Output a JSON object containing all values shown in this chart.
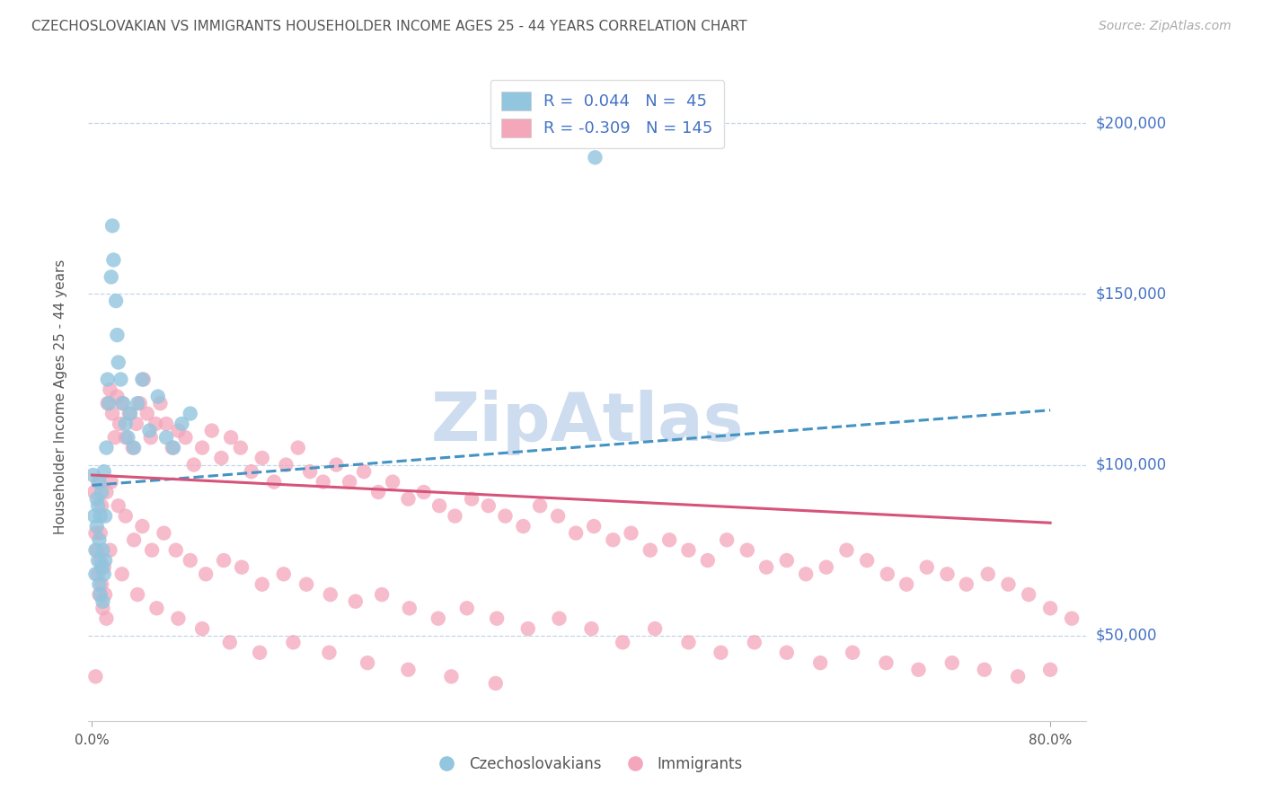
{
  "title": "CZECHOSLOVAKIAN VS IMMIGRANTS HOUSEHOLDER INCOME AGES 25 - 44 YEARS CORRELATION CHART",
  "source": "Source: ZipAtlas.com",
  "ylabel": "Householder Income Ages 25 - 44 years",
  "y_ticks": [
    50000,
    100000,
    150000,
    200000
  ],
  "y_tick_labels": [
    "$50,000",
    "$100,000",
    "$150,000",
    "$200,000"
  ],
  "y_min": 25000,
  "y_max": 215000,
  "x_min": -0.003,
  "x_max": 0.83,
  "legend_blue_r": "0.044",
  "legend_blue_n": "45",
  "legend_pink_r": "-0.309",
  "legend_pink_n": "145",
  "blue_color": "#92c5de",
  "pink_color": "#f4a6bb",
  "blue_line_color": "#4393c3",
  "pink_line_color": "#d6537a",
  "title_color": "#555555",
  "source_color": "#aaaaaa",
  "right_label_color": "#4472c4",
  "watermark_color": "#cddcef",
  "background_color": "#ffffff",
  "blue_scatter_x": [
    0.001,
    0.002,
    0.003,
    0.003,
    0.004,
    0.004,
    0.005,
    0.005,
    0.006,
    0.006,
    0.006,
    0.007,
    0.007,
    0.008,
    0.008,
    0.009,
    0.009,
    0.01,
    0.01,
    0.011,
    0.011,
    0.012,
    0.013,
    0.014,
    0.016,
    0.017,
    0.018,
    0.02,
    0.021,
    0.022,
    0.024,
    0.026,
    0.028,
    0.03,
    0.032,
    0.035,
    0.038,
    0.042,
    0.048,
    0.055,
    0.062,
    0.068,
    0.075,
    0.082,
    0.42
  ],
  "blue_scatter_y": [
    97000,
    85000,
    75000,
    68000,
    82000,
    90000,
    72000,
    88000,
    65000,
    78000,
    95000,
    62000,
    85000,
    70000,
    92000,
    60000,
    75000,
    68000,
    98000,
    72000,
    85000,
    105000,
    125000,
    118000,
    155000,
    170000,
    160000,
    148000,
    138000,
    130000,
    125000,
    118000,
    112000,
    108000,
    115000,
    105000,
    118000,
    125000,
    110000,
    120000,
    108000,
    105000,
    112000,
    115000,
    190000
  ],
  "pink_scatter_x": [
    0.002,
    0.003,
    0.004,
    0.005,
    0.006,
    0.007,
    0.008,
    0.009,
    0.01,
    0.011,
    0.012,
    0.013,
    0.015,
    0.017,
    0.019,
    0.021,
    0.023,
    0.025,
    0.028,
    0.031,
    0.034,
    0.037,
    0.04,
    0.043,
    0.046,
    0.049,
    0.053,
    0.057,
    0.062,
    0.067,
    0.072,
    0.078,
    0.085,
    0.092,
    0.1,
    0.108,
    0.116,
    0.124,
    0.133,
    0.142,
    0.152,
    0.162,
    0.172,
    0.182,
    0.193,
    0.204,
    0.215,
    0.227,
    0.239,
    0.251,
    0.264,
    0.277,
    0.29,
    0.303,
    0.317,
    0.331,
    0.345,
    0.36,
    0.374,
    0.389,
    0.404,
    0.419,
    0.435,
    0.45,
    0.466,
    0.482,
    0.498,
    0.514,
    0.53,
    0.547,
    0.563,
    0.58,
    0.596,
    0.613,
    0.63,
    0.647,
    0.664,
    0.68,
    0.697,
    0.714,
    0.73,
    0.748,
    0.765,
    0.782,
    0.8,
    0.818,
    0.005,
    0.008,
    0.012,
    0.016,
    0.022,
    0.028,
    0.035,
    0.042,
    0.05,
    0.06,
    0.07,
    0.082,
    0.095,
    0.11,
    0.125,
    0.142,
    0.16,
    0.179,
    0.199,
    0.22,
    0.242,
    0.265,
    0.289,
    0.313,
    0.338,
    0.364,
    0.39,
    0.417,
    0.443,
    0.47,
    0.498,
    0.525,
    0.553,
    0.58,
    0.608,
    0.635,
    0.663,
    0.69,
    0.718,
    0.745,
    0.773,
    0.8,
    0.003,
    0.007,
    0.015,
    0.025,
    0.038,
    0.054,
    0.072,
    0.092,
    0.115,
    0.14,
    0.168,
    0.198,
    0.23,
    0.264,
    0.3,
    0.337
  ],
  "pink_scatter_y": [
    92000,
    80000,
    75000,
    68000,
    62000,
    72000,
    65000,
    58000,
    70000,
    62000,
    55000,
    118000,
    122000,
    115000,
    108000,
    120000,
    112000,
    118000,
    108000,
    115000,
    105000,
    112000,
    118000,
    125000,
    115000,
    108000,
    112000,
    118000,
    112000,
    105000,
    110000,
    108000,
    100000,
    105000,
    110000,
    102000,
    108000,
    105000,
    98000,
    102000,
    95000,
    100000,
    105000,
    98000,
    95000,
    100000,
    95000,
    98000,
    92000,
    95000,
    90000,
    92000,
    88000,
    85000,
    90000,
    88000,
    85000,
    82000,
    88000,
    85000,
    80000,
    82000,
    78000,
    80000,
    75000,
    78000,
    75000,
    72000,
    78000,
    75000,
    70000,
    72000,
    68000,
    70000,
    75000,
    72000,
    68000,
    65000,
    70000,
    68000,
    65000,
    68000,
    65000,
    62000,
    58000,
    55000,
    95000,
    88000,
    92000,
    95000,
    88000,
    85000,
    78000,
    82000,
    75000,
    80000,
    75000,
    72000,
    68000,
    72000,
    70000,
    65000,
    68000,
    65000,
    62000,
    60000,
    62000,
    58000,
    55000,
    58000,
    55000,
    52000,
    55000,
    52000,
    48000,
    52000,
    48000,
    45000,
    48000,
    45000,
    42000,
    45000,
    42000,
    40000,
    42000,
    40000,
    38000,
    40000,
    38000,
    80000,
    75000,
    68000,
    62000,
    58000,
    55000,
    52000,
    48000,
    45000,
    48000,
    45000,
    42000,
    40000,
    38000,
    36000,
    42000
  ],
  "blue_trend_x": [
    0.0,
    0.8
  ],
  "blue_trend_y": [
    94000,
    116000
  ],
  "pink_trend_x": [
    0.0,
    0.8
  ],
  "pink_trend_y": [
    97000,
    83000
  ]
}
